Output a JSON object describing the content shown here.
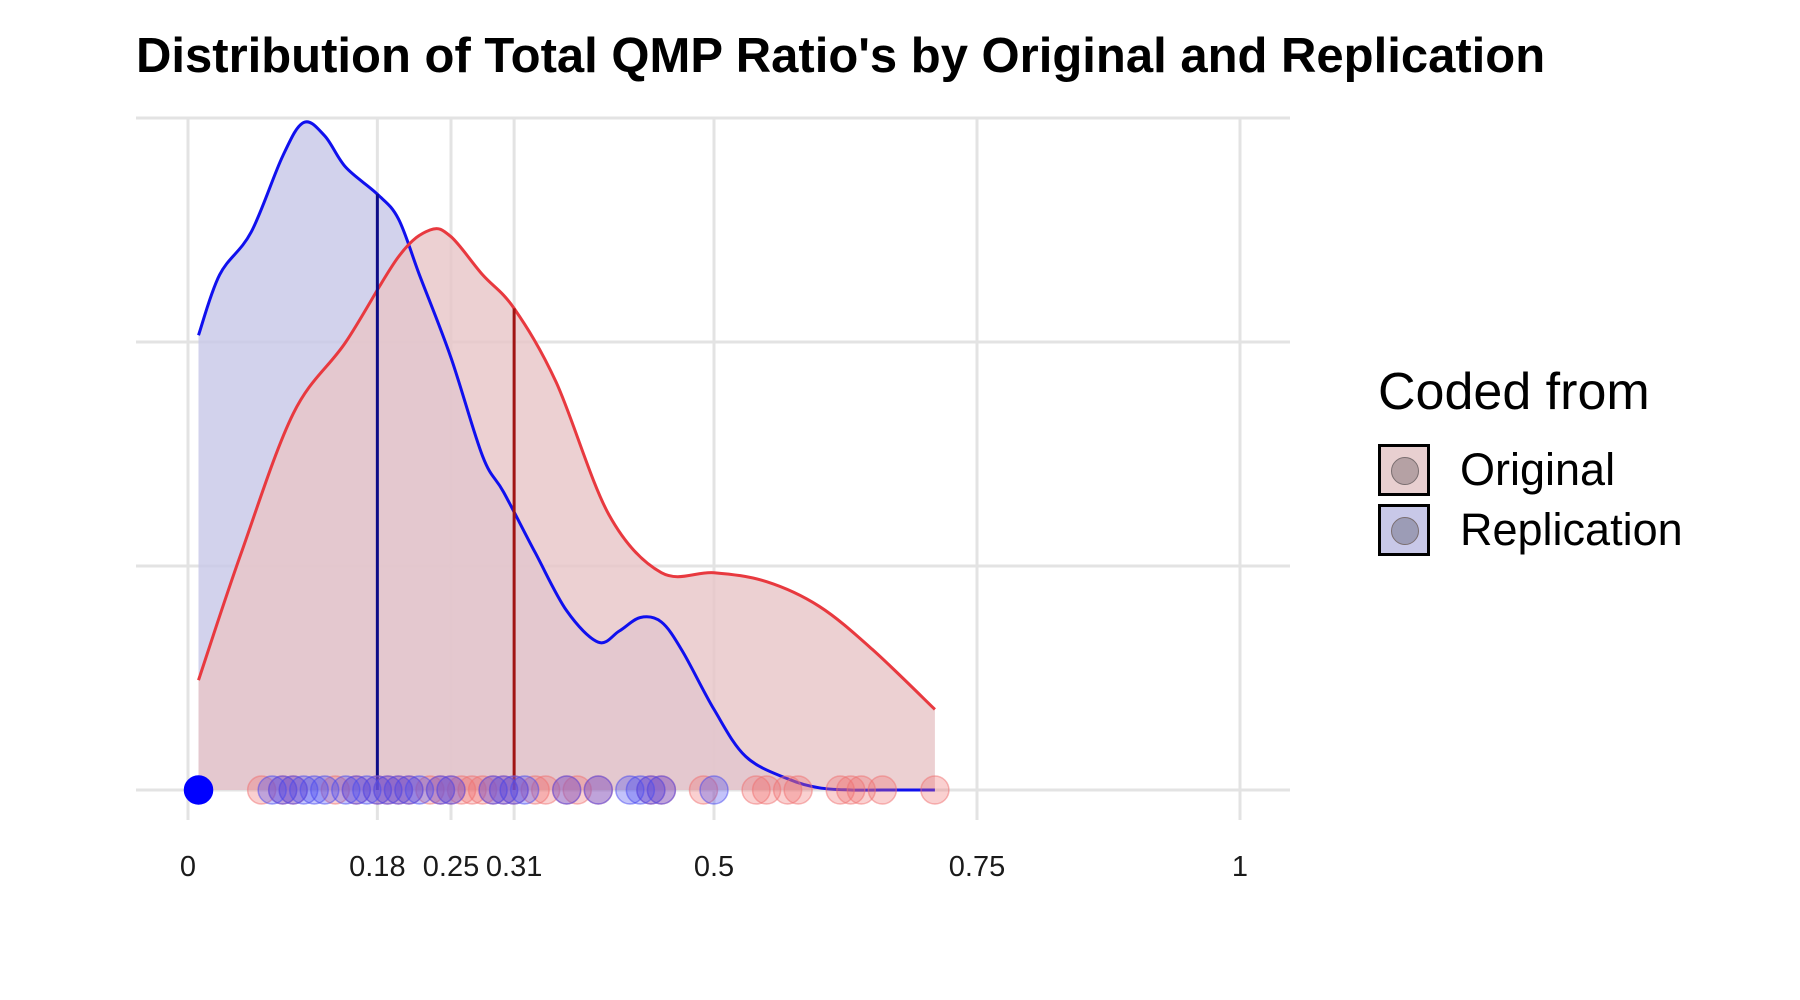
{
  "chart_data": {
    "type": "area",
    "title": "Distribution of Total QMP Ratio's by Original and Replication",
    "xlabel": "",
    "ylabel": "",
    "xlim": [
      -0.05,
      1.05
    ],
    "ylim": [
      -0.1,
      3.0
    ],
    "x_ticks": [
      0,
      0.18,
      0.25,
      0.31,
      0.5,
      0.75,
      1
    ],
    "x_tick_labels": [
      "0",
      "0.18",
      "0.25",
      "0.31",
      "0.5",
      "0.75",
      "1"
    ],
    "y_gridlines": [
      0,
      1,
      2,
      3
    ],
    "y_tick_labels_shown": false,
    "grid": true,
    "legend": {
      "title": "Coded from",
      "position": "right",
      "entries": [
        "Original",
        "Replication"
      ]
    },
    "series": [
      {
        "name": "Original",
        "kind": "density",
        "line_color": "#e8393f",
        "fill_color": "#e8c6c8",
        "median_line": 0.31,
        "median_color": "#a01414",
        "density": {
          "x": [
            0.01,
            0.05,
            0.1,
            0.15,
            0.2,
            0.23,
            0.25,
            0.28,
            0.31,
            0.35,
            0.4,
            0.45,
            0.5,
            0.55,
            0.6,
            0.65,
            0.71
          ],
          "y": [
            0.49,
            1.05,
            1.68,
            2.0,
            2.38,
            2.5,
            2.47,
            2.3,
            2.15,
            1.82,
            1.23,
            0.97,
            0.97,
            0.93,
            0.82,
            0.63,
            0.36
          ]
        },
        "points": [
          0.07,
          0.09,
          0.1,
          0.14,
          0.16,
          0.18,
          0.19,
          0.2,
          0.21,
          0.23,
          0.24,
          0.25,
          0.26,
          0.27,
          0.28,
          0.29,
          0.3,
          0.31,
          0.33,
          0.34,
          0.36,
          0.37,
          0.39,
          0.44,
          0.45,
          0.49,
          0.54,
          0.55,
          0.57,
          0.58,
          0.62,
          0.63,
          0.64,
          0.66,
          0.71
        ]
      },
      {
        "name": "Replication",
        "kind": "density",
        "line_color": "#1010ee",
        "fill_color": "#c8c8e8",
        "median_line": 0.18,
        "median_color": "#0c0c88",
        "density": {
          "x": [
            0.01,
            0.03,
            0.06,
            0.09,
            0.11,
            0.13,
            0.15,
            0.18,
            0.2,
            0.22,
            0.25,
            0.28,
            0.3,
            0.33,
            0.36,
            0.39,
            0.41,
            0.43,
            0.45,
            0.47,
            0.5,
            0.53,
            0.57,
            0.6,
            0.63,
            0.66,
            0.71
          ],
          "y": [
            2.03,
            2.3,
            2.49,
            2.83,
            2.98,
            2.92,
            2.78,
            2.66,
            2.55,
            2.3,
            1.93,
            1.49,
            1.33,
            1.06,
            0.8,
            0.66,
            0.71,
            0.77,
            0.75,
            0.62,
            0.36,
            0.15,
            0.05,
            0.01,
            0.0,
            0.0,
            0.0
          ]
        },
        "points": [
          0.01,
          0.08,
          0.09,
          0.1,
          0.11,
          0.12,
          0.13,
          0.15,
          0.16,
          0.17,
          0.18,
          0.19,
          0.2,
          0.21,
          0.22,
          0.24,
          0.25,
          0.29,
          0.3,
          0.31,
          0.32,
          0.36,
          0.39,
          0.42,
          0.43,
          0.44,
          0.45,
          0.5
        ]
      }
    ]
  }
}
